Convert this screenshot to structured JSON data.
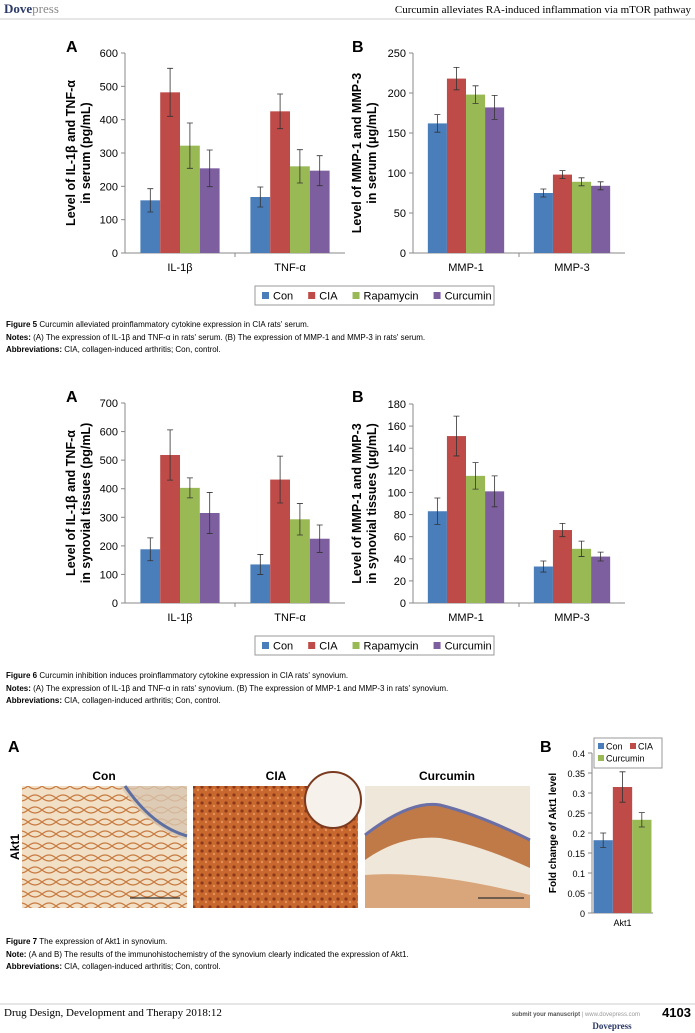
{
  "header": {
    "logo_bold": "Dove",
    "logo_light": "press",
    "running_title": "Curcumin alleviates RA-induced inflammation via mTOR pathway"
  },
  "chart_data": [
    {
      "type": "bar",
      "panel": "A",
      "ylabel": [
        "Level of IL-1β and TNF-α",
        "in serum  (pg/mL)"
      ],
      "categories": [
        "IL-1β",
        "TNF-α"
      ],
      "ylim": [
        0,
        600
      ],
      "yticks": [
        0,
        100,
        200,
        300,
        400,
        500,
        600
      ],
      "legend": "bottom",
      "series": [
        {
          "name": "Con",
          "color": "#4a7ebb",
          "values": [
            158,
            168
          ],
          "errors": [
            35,
            30
          ]
        },
        {
          "name": "CIA",
          "color": "#be4b48",
          "values": [
            482,
            425
          ],
          "errors": [
            72,
            52
          ]
        },
        {
          "name": "Rapamycin",
          "color": "#98b954",
          "values": [
            322,
            260
          ],
          "errors": [
            68,
            50
          ]
        },
        {
          "name": "Curcumin",
          "color": "#7d5fa0",
          "values": [
            254,
            247
          ],
          "errors": [
            55,
            45
          ]
        }
      ]
    },
    {
      "type": "bar",
      "panel": "B",
      "ylabel": [
        "Level of MMP-1 and MMP-3",
        "in serum  (μg/mL)"
      ],
      "categories": [
        "MMP-1",
        "MMP-3"
      ],
      "ylim": [
        0,
        250
      ],
      "yticks": [
        0,
        50,
        100,
        150,
        200,
        250
      ],
      "series": [
        {
          "color": "#4a7ebb",
          "values": [
            162,
            75
          ],
          "errors": [
            11,
            5
          ]
        },
        {
          "color": "#be4b48",
          "values": [
            218,
            98
          ],
          "errors": [
            14,
            5
          ]
        },
        {
          "color": "#98b954",
          "values": [
            198,
            89
          ],
          "errors": [
            11,
            5
          ]
        },
        {
          "color": "#7d5fa0",
          "values": [
            182,
            84
          ],
          "errors": [
            15,
            5
          ]
        }
      ]
    },
    {
      "type": "bar",
      "panel": "A",
      "ylabel": [
        "Level of IL-1β and TNF-α",
        "in synovial tissues  (pg/mL)"
      ],
      "categories": [
        "IL-1β",
        "TNF-α"
      ],
      "ylim": [
        0,
        700
      ],
      "yticks": [
        0,
        100,
        200,
        300,
        400,
        500,
        600,
        700
      ],
      "legend": "bottom",
      "series": [
        {
          "name": "Con",
          "color": "#4a7ebb",
          "values": [
            188,
            135
          ],
          "errors": [
            40,
            35
          ]
        },
        {
          "name": "CIA",
          "color": "#be4b48",
          "values": [
            518,
            432
          ],
          "errors": [
            88,
            82
          ]
        },
        {
          "name": "Rapamycin",
          "color": "#98b954",
          "values": [
            403,
            293
          ],
          "errors": [
            35,
            55
          ]
        },
        {
          "name": "Curcumin",
          "color": "#7d5fa0",
          "values": [
            315,
            225
          ],
          "errors": [
            72,
            48
          ]
        }
      ]
    },
    {
      "type": "bar",
      "panel": "B",
      "ylabel": [
        "Level of MMP-1 and MMP-3",
        "in synovial tissues  (μg/mL)"
      ],
      "categories": [
        "MMP-1",
        "MMP-3"
      ],
      "ylim": [
        0,
        180
      ],
      "yticks": [
        0,
        20,
        40,
        60,
        80,
        100,
        120,
        140,
        160,
        180
      ],
      "series": [
        {
          "color": "#4a7ebb",
          "values": [
            83,
            33
          ],
          "errors": [
            12,
            5
          ]
        },
        {
          "color": "#be4b48",
          "values": [
            151,
            66
          ],
          "errors": [
            18,
            6
          ]
        },
        {
          "color": "#98b954",
          "values": [
            115,
            49
          ],
          "errors": [
            12,
            7
          ]
        },
        {
          "color": "#7d5fa0",
          "values": [
            101,
            42
          ],
          "errors": [
            14,
            4
          ]
        }
      ]
    },
    {
      "type": "bar",
      "panel": "B",
      "ylabel": "Fold change of Akt1 level",
      "categories": [
        "Akt1"
      ],
      "ylim": [
        0,
        0.4
      ],
      "yticks": [
        0,
        0.05,
        0.1,
        0.15,
        0.2,
        0.25,
        0.3,
        0.35,
        0.4
      ],
      "legend": "upper left",
      "series": [
        {
          "name": "Con",
          "color": "#4a7ebb",
          "values": [
            0.182
          ],
          "errors": [
            0.018
          ]
        },
        {
          "name": "CIA",
          "color": "#be4b48",
          "values": [
            0.315
          ],
          "errors": [
            0.038
          ]
        },
        {
          "name": "Curcumin",
          "color": "#98b954",
          "values": [
            0.233
          ],
          "errors": [
            0.018
          ]
        }
      ]
    }
  ],
  "figure_5": {
    "label": "Figure 5",
    "caption": " Curcumin alleviated proinflammatory cytokine expression in CIA rats' serum.",
    "notes_label": "Notes:",
    "notes": " (A) The expression of IL-1β and TNF-α in rats' serum. (B) The expression of MMP-1 and MMP-3 in rats' serum.",
    "abbr_label": "Abbreviations:",
    "abbr": " CIA, collagen-induced arthritis; Con, control."
  },
  "figure_6": {
    "label": "Figure 6",
    "caption": " Curcumin inhibition induces proinflammatory cytokine expression in CIA rats' synovium.",
    "notes_label": "Notes:",
    "notes": " (A) The expression of IL-1β and TNF-α in rats' synovium. (B) The expression of MMP-1 and MMP-3 in rats' synovium.",
    "abbr_label": "Abbreviations:",
    "abbr": " CIA, collagen-induced arthritis; Con, control."
  },
  "figure_7a": {
    "panel": "A",
    "columns": [
      "Con",
      "CIA",
      "Curcumin"
    ],
    "row": "Akt1"
  },
  "figure_7": {
    "label": "Figure 7",
    "caption": " The expression of Akt1 in synovium.",
    "notes_label": "Note:",
    "notes": " (A and B) The results of the immunohistochemistry of the synovium clearly indicated the expression of Akt1.",
    "abbr_label": "Abbreviations:",
    "abbr": " CIA, collagen-induced arthritis; Con, control."
  },
  "footer": {
    "journal": "Drug Design, Development and Therapy 2018:12",
    "submit": "submit your manuscript",
    "site": " | www.dovepress.com",
    "logo": "Dovepress",
    "page": "4103"
  }
}
